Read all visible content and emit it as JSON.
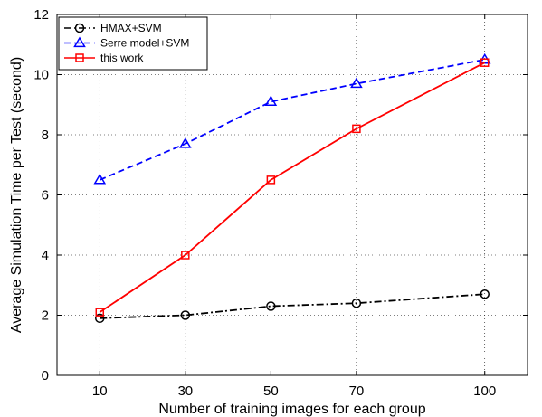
{
  "chart_data": {
    "type": "line",
    "title": "",
    "xlabel": "Number of training images for each group",
    "ylabel": "Average Simulation Time per Test (second)",
    "x": [
      10,
      30,
      50,
      70,
      100
    ],
    "xticks": [
      "10",
      "30",
      "50",
      "70",
      "100"
    ],
    "xlim": [
      0,
      110
    ],
    "yticks": [
      "0",
      "2",
      "4",
      "6",
      "8",
      "10",
      "12"
    ],
    "ylim": [
      0,
      12
    ],
    "grid": true,
    "legend_position": "top-left",
    "series": [
      {
        "name": "HMAX+SVM",
        "values": [
          1.9,
          2.0,
          2.3,
          2.4,
          2.7
        ],
        "color": "#000000",
        "line": "dashdot",
        "marker": "circle"
      },
      {
        "name": "Serre model+SVM",
        "values": [
          6.5,
          7.7,
          9.1,
          9.7,
          10.5
        ],
        "color": "#0000ff",
        "line": "dashed",
        "marker": "triangle"
      },
      {
        "name": "this work",
        "values": [
          2.1,
          4.0,
          6.5,
          8.2,
          10.4
        ],
        "color": "#ff0000",
        "line": "solid",
        "marker": "square"
      }
    ]
  }
}
